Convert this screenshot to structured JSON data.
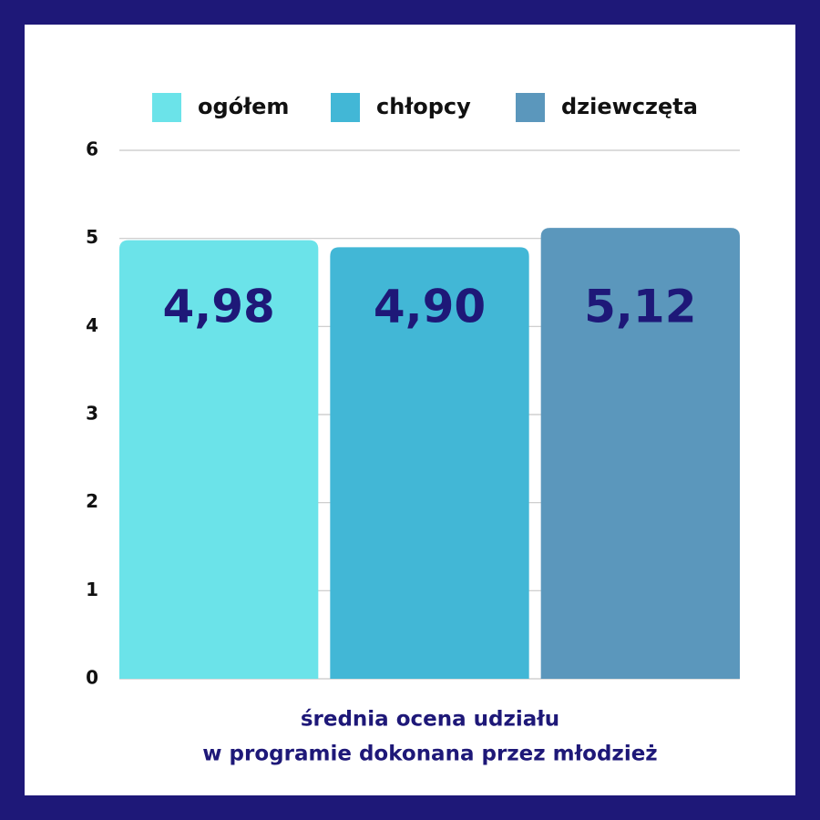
{
  "chart_data": {
    "type": "bar",
    "categories": [
      null
    ],
    "series": [
      {
        "name": "ogółem",
        "color": "#6be3e9",
        "values": [
          4.98
        ],
        "value_labels": [
          "4,98"
        ]
      },
      {
        "name": "chłopcy",
        "color": "#42b7d6",
        "values": [
          4.9
        ],
        "value_labels": [
          "4,90"
        ]
      },
      {
        "name": "dziewczęta",
        "color": "#5b97bc",
        "values": [
          5.12
        ],
        "value_labels": [
          "5,12"
        ]
      }
    ],
    "xlabel": [
      "średnia ocena udziału",
      "w programie dokonana przez młodzież"
    ],
    "ylim": [
      0,
      6
    ],
    "yticks": [
      0,
      1,
      2,
      3,
      4,
      5,
      6
    ],
    "grid": true,
    "legend": "top"
  }
}
